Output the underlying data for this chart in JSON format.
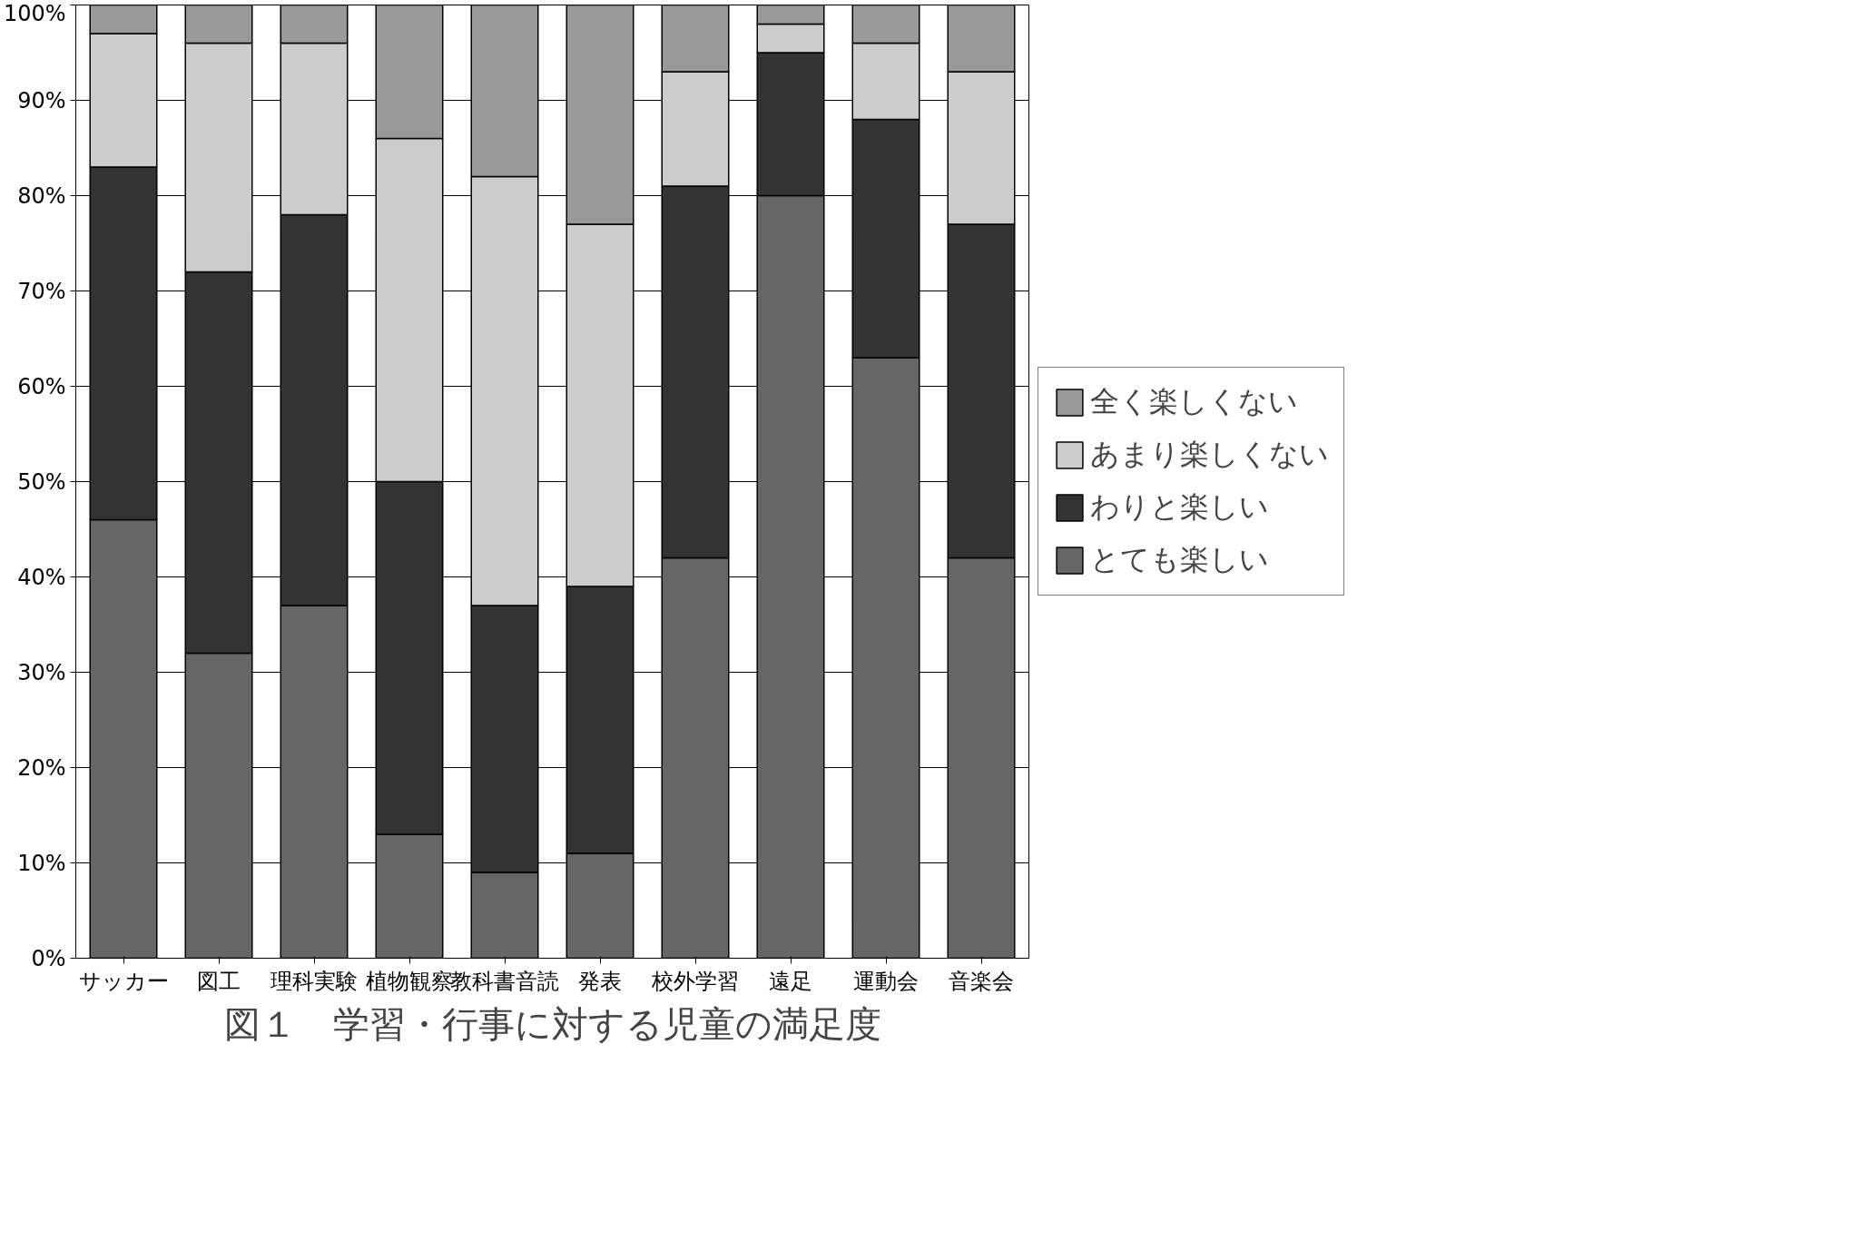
{
  "chart_data": {
    "type": "bar",
    "stacked": true,
    "title": "図１　学習・行事に対する児童の満足度",
    "categories": [
      "サッカー",
      "図工",
      "理科実験",
      "植物観察",
      "教科書音読",
      "発表",
      "校外学習",
      "遠足",
      "運動会",
      "音楽会"
    ],
    "series": [
      {
        "name": "とても楽しい",
        "color": "#666666",
        "values": [
          46,
          32,
          37,
          13,
          9,
          11,
          42,
          80,
          63,
          42
        ]
      },
      {
        "name": "わりと楽しい",
        "color": "#333333",
        "values": [
          37,
          40,
          41,
          37,
          28,
          28,
          39,
          15,
          25,
          35
        ]
      },
      {
        "name": "あまり楽しくない",
        "color": "#cccccc",
        "values": [
          14,
          24,
          18,
          36,
          45,
          38,
          12,
          3,
          8,
          16
        ]
      },
      {
        "name": "全く楽しくない",
        "color": "#999999",
        "values": [
          3,
          4,
          4,
          14,
          18,
          23,
          7,
          2,
          4,
          7
        ]
      }
    ],
    "ylim": [
      0,
      100
    ],
    "yticks": [
      {
        "value": 0,
        "label": "0%"
      },
      {
        "value": 10,
        "label": "10%"
      },
      {
        "value": 20,
        "label": "20%"
      },
      {
        "value": 30,
        "label": "30%"
      },
      {
        "value": 40,
        "label": "40%"
      },
      {
        "value": 50,
        "label": "50%"
      },
      {
        "value": 60,
        "label": "60%"
      },
      {
        "value": 70,
        "label": "70%"
      },
      {
        "value": 80,
        "label": "80%"
      },
      {
        "value": 90,
        "label": "90%"
      },
      {
        "value": 100,
        "label": "100%"
      }
    ],
    "grid": "y",
    "legend": "right"
  }
}
